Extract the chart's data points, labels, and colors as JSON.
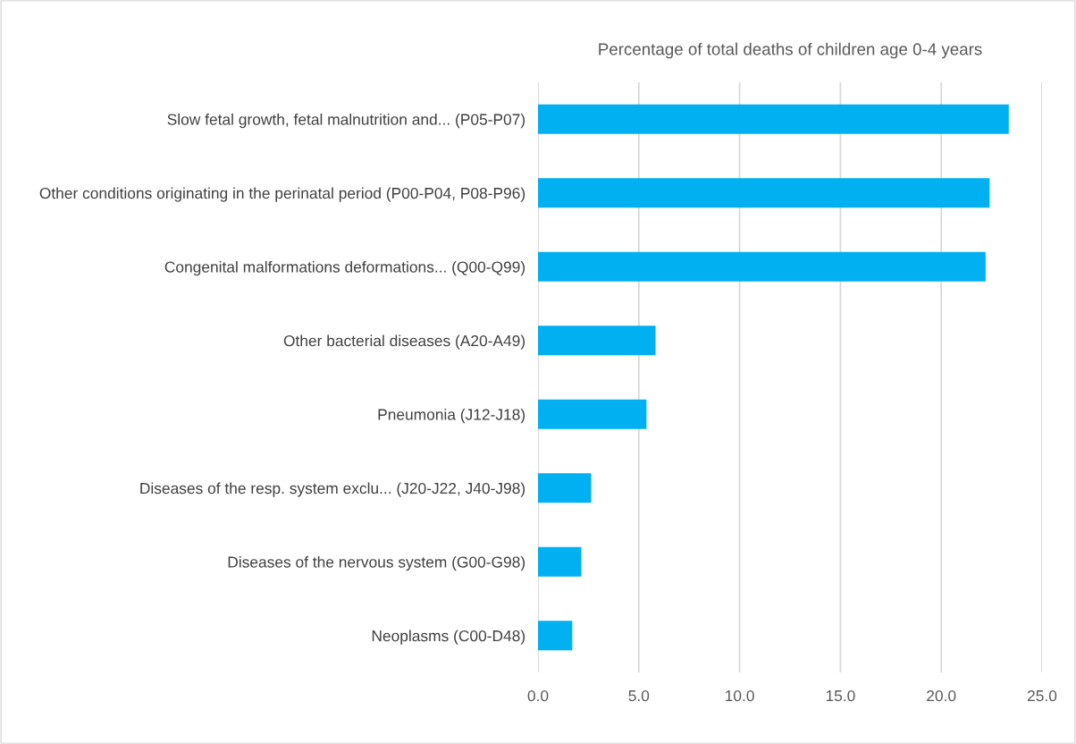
{
  "chart_data": {
    "type": "bar",
    "orientation": "horizontal",
    "title": "Percentage of total deaths of children age 0-4 years",
    "categories": [
      "Slow fetal growth, fetal malnutrition and... (P05-P07)",
      "Other conditions originating in the perinatal period (P00-P04, P08-P96)",
      "Congenital malformations deformations... (Q00-Q99)",
      "Other bacterial diseases (A20-A49)",
      "Pneumonia (J12-J18)",
      "Diseases of the resp. system exclu... (J20-J22, J40-J98)",
      "Diseases of the nervous system (G00-G98)",
      "Neoplasms (C00-D48)"
    ],
    "values": [
      23.35,
      22.4,
      22.2,
      5.83,
      5.38,
      2.64,
      2.15,
      1.7
    ],
    "color": "#00b0f0",
    "xlim": [
      0,
      25
    ],
    "xticks": [
      {
        "value": 0,
        "label": "0.0"
      },
      {
        "value": 5,
        "label": "5.0"
      },
      {
        "value": 10,
        "label": "10.0"
      },
      {
        "value": 15,
        "label": "15.0"
      },
      {
        "value": 20,
        "label": "20.0"
      },
      {
        "value": 25,
        "label": "25.0"
      }
    ],
    "grid": "x"
  }
}
